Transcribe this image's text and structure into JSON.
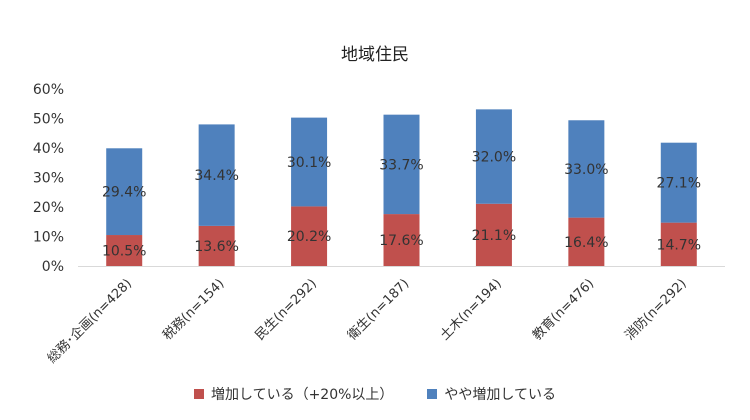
{
  "chart_data": {
    "type": "bar",
    "stacked": true,
    "title": "地域住民",
    "categories": [
      "総務･企画(n=428)",
      "税務(n=154)",
      "民生(n=292)",
      "衛生(n=187)",
      "土木(n=194)",
      "教育(n=476)",
      "消防(n=292)"
    ],
    "series": [
      {
        "name": "増加している（+20%以上）",
        "color": "#c0504d",
        "values": [
          10.5,
          13.6,
          20.2,
          17.6,
          21.1,
          16.4,
          14.7
        ],
        "labels": [
          "10.5%",
          "13.6%",
          "20.2%",
          "17.6%",
          "21.1%",
          "16.4%",
          "14.7%"
        ]
      },
      {
        "name": "やや増加している",
        "color": "#4f81bd",
        "values": [
          29.4,
          34.4,
          30.1,
          33.7,
          32.0,
          33.0,
          27.1
        ],
        "labels": [
          "29.4%",
          "34.4%",
          "30.1%",
          "33.7%",
          "32.0%",
          "33.0%",
          "27.1%"
        ]
      }
    ],
    "yticks": [
      "0%",
      "10%",
      "20%",
      "30%",
      "40%",
      "50%",
      "60%"
    ],
    "ylim": [
      0,
      60
    ],
    "xlabel": "",
    "ylabel": "",
    "grid": false,
    "legend_position": "bottom"
  }
}
